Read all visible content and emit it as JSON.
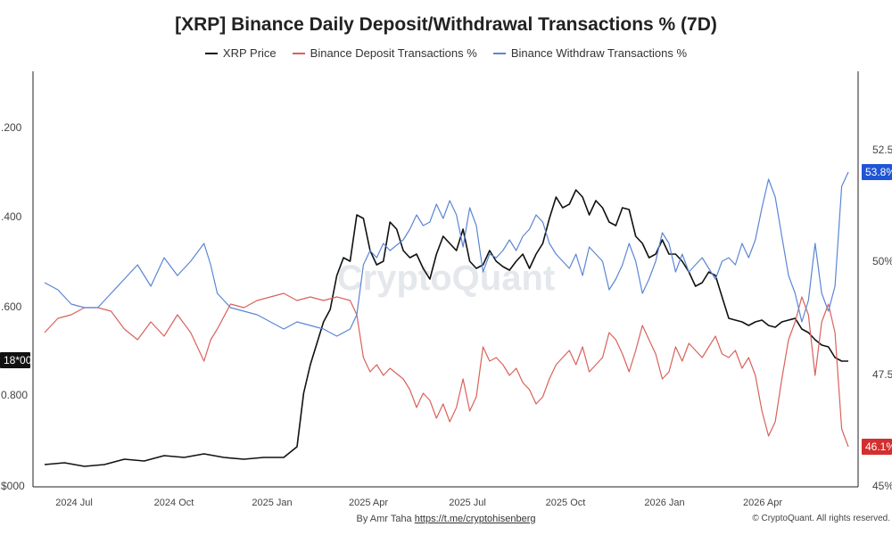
{
  "title": "[XRP] Binance Daily Deposit/Withdrawal Transactions % (7D)",
  "watermark": "CryptoQuant",
  "footer": {
    "author": "By Amr Taha",
    "link": "https://t.me/cryptohisenberg",
    "copyright": "© CryptoQuant. All rights reserved."
  },
  "colors": {
    "price": "#111111",
    "deposit": "#d9625b",
    "withdraw": "#5b86d4",
    "badge_dark": "#111111",
    "badge_blue": "#1f55d6",
    "badge_red": "#d32f2f"
  },
  "chart_data": {
    "type": "line",
    "title": "[XRP] Binance Daily Deposit/Withdrawal Transactions % (7D)",
    "x_ticks": [
      "2024 Jul",
      "2024 Oct",
      "2025 Jan",
      "2025 Apr",
      "2025 Jul",
      "2025 Oct",
      "2026 Jan",
      "2026 Apr"
    ],
    "left_axis": {
      "ticks": [
        "$000",
        "0.800",
        ".600",
        ".400",
        ".200"
      ],
      "cursor_label": "18*00"
    },
    "right_axis": {
      "ticks": [
        "45%",
        "47.5",
        "50%",
        "52.5"
      ],
      "last_withdraw_label": "53.8%",
      "last_deposit_label": "46.1%"
    },
    "legend_position": "top-center",
    "grid": false,
    "series": [
      {
        "name": "XRP Price",
        "axis": "left",
        "points": [
          [
            0,
            0.12
          ],
          [
            3,
            0.13
          ],
          [
            6,
            0.11
          ],
          [
            9,
            0.12
          ],
          [
            12,
            0.15
          ],
          [
            15,
            0.14
          ],
          [
            18,
            0.17
          ],
          [
            21,
            0.16
          ],
          [
            24,
            0.18
          ],
          [
            27,
            0.16
          ],
          [
            30,
            0.15
          ],
          [
            33,
            0.16
          ],
          [
            36,
            0.16
          ],
          [
            38,
            0.22
          ],
          [
            39,
            0.52
          ],
          [
            40,
            0.68
          ],
          [
            41,
            0.8
          ],
          [
            42,
            0.92
          ],
          [
            43,
            0.99
          ],
          [
            44,
            1.18
          ],
          [
            45,
            1.28
          ],
          [
            46,
            1.26
          ],
          [
            47,
            1.52
          ],
          [
            48,
            1.5
          ],
          [
            49,
            1.32
          ],
          [
            50,
            1.24
          ],
          [
            51,
            1.26
          ],
          [
            52,
            1.48
          ],
          [
            53,
            1.44
          ],
          [
            54,
            1.32
          ],
          [
            55,
            1.28
          ],
          [
            56,
            1.3
          ],
          [
            57,
            1.22
          ],
          [
            58,
            1.16
          ],
          [
            59,
            1.3
          ],
          [
            60,
            1.4
          ],
          [
            61,
            1.36
          ],
          [
            62,
            1.32
          ],
          [
            63,
            1.44
          ],
          [
            64,
            1.26
          ],
          [
            65,
            1.22
          ],
          [
            66,
            1.24
          ],
          [
            67,
            1.32
          ],
          [
            68,
            1.26
          ],
          [
            69,
            1.23
          ],
          [
            70,
            1.21
          ],
          [
            71,
            1.26
          ],
          [
            72,
            1.3
          ],
          [
            73,
            1.22
          ],
          [
            74,
            1.3
          ],
          [
            75,
            1.36
          ],
          [
            76,
            1.5
          ],
          [
            77,
            1.62
          ],
          [
            78,
            1.56
          ],
          [
            79,
            1.58
          ],
          [
            80,
            1.66
          ],
          [
            81,
            1.62
          ],
          [
            82,
            1.52
          ],
          [
            83,
            1.6
          ],
          [
            84,
            1.56
          ],
          [
            85,
            1.48
          ],
          [
            86,
            1.46
          ],
          [
            87,
            1.56
          ],
          [
            88,
            1.55
          ],
          [
            89,
            1.4
          ],
          [
            90,
            1.36
          ],
          [
            91,
            1.28
          ],
          [
            92,
            1.3
          ],
          [
            93,
            1.38
          ],
          [
            94,
            1.3
          ],
          [
            95,
            1.3
          ],
          [
            96,
            1.26
          ],
          [
            97,
            1.2
          ],
          [
            98,
            1.12
          ],
          [
            99,
            1.14
          ],
          [
            100,
            1.2
          ],
          [
            101,
            1.18
          ],
          [
            102,
            1.06
          ],
          [
            103,
            0.94
          ],
          [
            104,
            0.93
          ],
          [
            105,
            0.92
          ],
          [
            106,
            0.9
          ],
          [
            107,
            0.92
          ],
          [
            108,
            0.93
          ],
          [
            109,
            0.9
          ],
          [
            110,
            0.89
          ],
          [
            111,
            0.92
          ],
          [
            112,
            0.93
          ],
          [
            113,
            0.94
          ],
          [
            114,
            0.88
          ],
          [
            115,
            0.86
          ],
          [
            116,
            0.82
          ],
          [
            117,
            0.79
          ],
          [
            118,
            0.78
          ],
          [
            119,
            0.72
          ],
          [
            120,
            0.7
          ],
          [
            121,
            0.7
          ]
        ]
      },
      {
        "name": "Binance Deposit Transactions %",
        "axis": "right",
        "points": [
          [
            0,
            49.3
          ],
          [
            2,
            49.7
          ],
          [
            4,
            49.8
          ],
          [
            6,
            50.0
          ],
          [
            8,
            50.0
          ],
          [
            10,
            49.9
          ],
          [
            12,
            49.4
          ],
          [
            14,
            49.1
          ],
          [
            16,
            49.6
          ],
          [
            18,
            49.2
          ],
          [
            20,
            49.8
          ],
          [
            22,
            49.3
          ],
          [
            24,
            48.5
          ],
          [
            25,
            49.1
          ],
          [
            26,
            49.4
          ],
          [
            28,
            50.1
          ],
          [
            30,
            50.0
          ],
          [
            32,
            50.2
          ],
          [
            34,
            50.3
          ],
          [
            36,
            50.4
          ],
          [
            38,
            50.2
          ],
          [
            40,
            50.3
          ],
          [
            42,
            50.2
          ],
          [
            44,
            50.3
          ],
          [
            46,
            50.2
          ],
          [
            47,
            49.8
          ],
          [
            48,
            48.6
          ],
          [
            49,
            48.2
          ],
          [
            50,
            48.4
          ],
          [
            51,
            48.1
          ],
          [
            52,
            48.3
          ],
          [
            54,
            48.0
          ],
          [
            55,
            47.7
          ],
          [
            56,
            47.2
          ],
          [
            57,
            47.6
          ],
          [
            58,
            47.4
          ],
          [
            59,
            46.9
          ],
          [
            60,
            47.3
          ],
          [
            61,
            46.8
          ],
          [
            62,
            47.2
          ],
          [
            63,
            48.0
          ],
          [
            64,
            47.1
          ],
          [
            65,
            47.5
          ],
          [
            66,
            48.9
          ],
          [
            67,
            48.5
          ],
          [
            68,
            48.6
          ],
          [
            69,
            48.4
          ],
          [
            70,
            48.1
          ],
          [
            71,
            48.3
          ],
          [
            72,
            47.9
          ],
          [
            73,
            47.7
          ],
          [
            74,
            47.3
          ],
          [
            75,
            47.5
          ],
          [
            76,
            48.0
          ],
          [
            77,
            48.4
          ],
          [
            78,
            48.6
          ],
          [
            79,
            48.8
          ],
          [
            80,
            48.4
          ],
          [
            81,
            48.9
          ],
          [
            82,
            48.2
          ],
          [
            83,
            48.4
          ],
          [
            84,
            48.6
          ],
          [
            85,
            49.3
          ],
          [
            86,
            49.1
          ],
          [
            87,
            48.7
          ],
          [
            88,
            48.2
          ],
          [
            89,
            48.8
          ],
          [
            90,
            49.5
          ],
          [
            91,
            49.1
          ],
          [
            92,
            48.7
          ],
          [
            93,
            48.0
          ],
          [
            94,
            48.2
          ],
          [
            95,
            48.9
          ],
          [
            96,
            48.5
          ],
          [
            97,
            49.0
          ],
          [
            98,
            48.8
          ],
          [
            99,
            48.6
          ],
          [
            100,
            48.9
          ],
          [
            101,
            49.2
          ],
          [
            102,
            48.7
          ],
          [
            103,
            48.6
          ],
          [
            104,
            48.8
          ],
          [
            105,
            48.3
          ],
          [
            106,
            48.6
          ],
          [
            107,
            48.1
          ],
          [
            108,
            47.1
          ],
          [
            109,
            46.4
          ],
          [
            110,
            46.8
          ],
          [
            111,
            48.0
          ],
          [
            112,
            49.1
          ],
          [
            113,
            49.6
          ],
          [
            114,
            50.3
          ],
          [
            115,
            49.8
          ],
          [
            116,
            48.1
          ],
          [
            117,
            49.6
          ],
          [
            118,
            50.1
          ],
          [
            119,
            49.3
          ],
          [
            120,
            46.6
          ],
          [
            121,
            46.1
          ]
        ]
      },
      {
        "name": "Binance Withdraw Transactions %",
        "axis": "right",
        "points": [
          [
            0,
            50.7
          ],
          [
            2,
            50.5
          ],
          [
            4,
            50.1
          ],
          [
            6,
            50.0
          ],
          [
            8,
            50.0
          ],
          [
            10,
            50.4
          ],
          [
            12,
            50.8
          ],
          [
            14,
            51.2
          ],
          [
            16,
            50.6
          ],
          [
            18,
            51.4
          ],
          [
            20,
            50.9
          ],
          [
            22,
            51.3
          ],
          [
            24,
            51.8
          ],
          [
            25,
            51.2
          ],
          [
            26,
            50.4
          ],
          [
            28,
            50.0
          ],
          [
            30,
            49.9
          ],
          [
            32,
            49.8
          ],
          [
            34,
            49.6
          ],
          [
            36,
            49.4
          ],
          [
            38,
            49.6
          ],
          [
            40,
            49.5
          ],
          [
            42,
            49.4
          ],
          [
            44,
            49.2
          ],
          [
            46,
            49.4
          ],
          [
            47,
            49.8
          ],
          [
            48,
            51.2
          ],
          [
            49,
            51.6
          ],
          [
            50,
            51.4
          ],
          [
            51,
            51.8
          ],
          [
            52,
            51.6
          ],
          [
            54,
            51.9
          ],
          [
            55,
            52.2
          ],
          [
            56,
            52.6
          ],
          [
            57,
            52.3
          ],
          [
            58,
            52.4
          ],
          [
            59,
            52.9
          ],
          [
            60,
            52.5
          ],
          [
            61,
            53.0
          ],
          [
            62,
            52.6
          ],
          [
            63,
            51.7
          ],
          [
            64,
            52.8
          ],
          [
            65,
            52.3
          ],
          [
            66,
            51.0
          ],
          [
            67,
            51.5
          ],
          [
            68,
            51.4
          ],
          [
            69,
            51.6
          ],
          [
            70,
            51.9
          ],
          [
            71,
            51.6
          ],
          [
            72,
            52.0
          ],
          [
            73,
            52.2
          ],
          [
            74,
            52.6
          ],
          [
            75,
            52.4
          ],
          [
            76,
            51.8
          ],
          [
            77,
            51.5
          ],
          [
            78,
            51.3
          ],
          [
            79,
            51.1
          ],
          [
            80,
            51.5
          ],
          [
            81,
            50.9
          ],
          [
            82,
            51.7
          ],
          [
            83,
            51.5
          ],
          [
            84,
            51.3
          ],
          [
            85,
            50.5
          ],
          [
            86,
            50.8
          ],
          [
            87,
            51.2
          ],
          [
            88,
            51.8
          ],
          [
            89,
            51.3
          ],
          [
            90,
            50.4
          ],
          [
            91,
            50.8
          ],
          [
            92,
            51.3
          ],
          [
            93,
            52.1
          ],
          [
            94,
            51.8
          ],
          [
            95,
            51.0
          ],
          [
            96,
            51.5
          ],
          [
            97,
            51.0
          ],
          [
            98,
            51.2
          ],
          [
            99,
            51.4
          ],
          [
            100,
            51.1
          ],
          [
            101,
            50.8
          ],
          [
            102,
            51.3
          ],
          [
            103,
            51.4
          ],
          [
            104,
            51.2
          ],
          [
            105,
            51.8
          ],
          [
            106,
            51.4
          ],
          [
            107,
            51.9
          ],
          [
            108,
            52.8
          ],
          [
            109,
            53.6
          ],
          [
            110,
            53.1
          ],
          [
            111,
            52.0
          ],
          [
            112,
            50.9
          ],
          [
            113,
            50.4
          ],
          [
            114,
            49.6
          ],
          [
            115,
            50.2
          ],
          [
            116,
            51.8
          ],
          [
            117,
            50.4
          ],
          [
            118,
            49.9
          ],
          [
            119,
            50.6
          ],
          [
            120,
            53.4
          ],
          [
            121,
            53.8
          ]
        ]
      }
    ]
  }
}
